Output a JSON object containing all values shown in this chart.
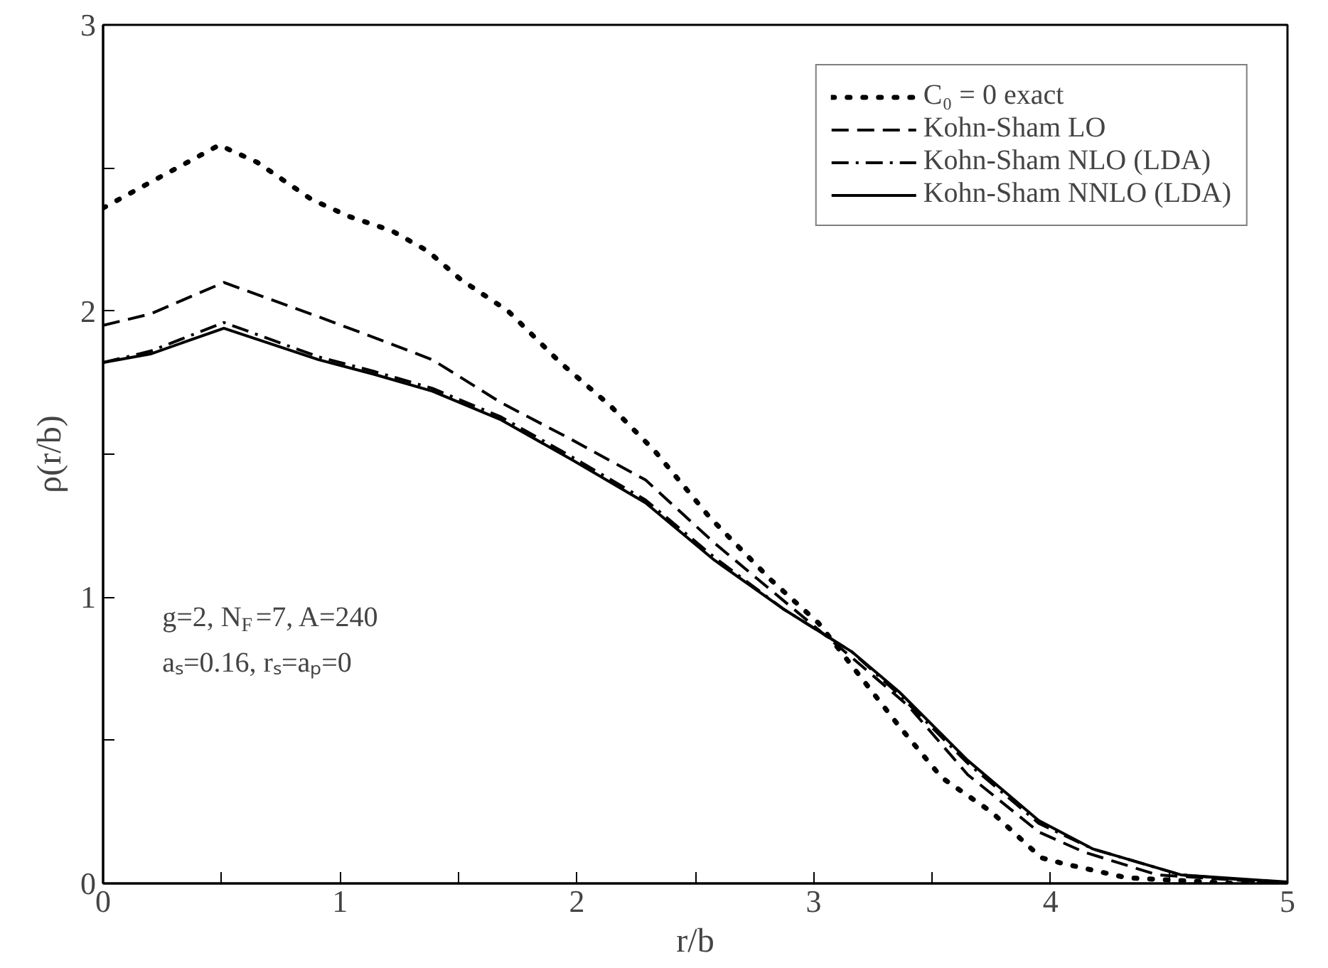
{
  "chart_data": {
    "type": "line",
    "xlabel": "r/b",
    "ylabel": "ρ(r/b)",
    "xlim": [
      0,
      5
    ],
    "ylim": [
      0,
      3
    ],
    "xticks": [
      0,
      {
        "value": 0.5,
        "label": null
      },
      1,
      {
        "value": 1.5,
        "label": null
      },
      2,
      {
        "value": 2.5,
        "label": null
      },
      3,
      {
        "value": 3.5,
        "label": null
      },
      4,
      {
        "value": 4.5,
        "label": null
      },
      5
    ],
    "yticks": [
      0,
      {
        "value": 0.5,
        "label": null
      },
      1,
      {
        "value": 1.5,
        "label": null
      },
      2,
      {
        "value": 2.5,
        "label": null
      },
      3
    ],
    "grid": false,
    "legend": "top right",
    "marker": "none",
    "annotations": [
      "g=2, N$_{F}$=7, A=240",
      "aₛ=0.16, rₛ=aₚ=0"
    ],
    "series": [
      {
        "name": "C₀ = 0 exact",
        "color": "#000000",
        "line_style": "dotted",
        "x": [
          0,
          0.2,
          0.49,
          0.65,
          0.88,
          1.04,
          1.22,
          1.37,
          1.51,
          1.71,
          1.93,
          2.14,
          2.33,
          2.56,
          2.82,
          3.02,
          3.19,
          3.36,
          3.54,
          3.75,
          3.96,
          4.05,
          4.32,
          4.77,
          5
        ],
        "values": [
          2.36,
          2.45,
          2.58,
          2.52,
          2.39,
          2.33,
          2.28,
          2.21,
          2.11,
          2.0,
          1.82,
          1.67,
          1.51,
          1.28,
          1.06,
          0.91,
          0.73,
          0.55,
          0.37,
          0.25,
          0.09,
          0.07,
          0.02,
          0.0,
          0.0
        ]
      },
      {
        "name": "Kohn-Sham LO",
        "color": "#000000",
        "line_style": "dashed",
        "x": [
          0,
          0.2,
          0.51,
          0.91,
          1.2,
          1.39,
          1.68,
          1.98,
          2.29,
          2.58,
          2.87,
          3.16,
          3.4,
          3.65,
          3.95,
          4.14,
          4.45,
          5
        ],
        "values": [
          1.95,
          1.99,
          2.1,
          1.98,
          1.89,
          1.83,
          1.68,
          1.55,
          1.41,
          1.19,
          0.99,
          0.79,
          0.62,
          0.38,
          0.18,
          0.11,
          0.03,
          0.0
        ]
      },
      {
        "name": "Kohn-Sham NLO (LDA)",
        "color": "#000000",
        "line_style": "dashdot",
        "x": [
          0,
          0.2,
          0.51,
          0.91,
          1.14,
          1.39,
          1.68,
          1.98,
          2.29,
          2.58,
          2.87,
          3.16,
          3.36,
          3.65,
          3.95,
          4.18,
          4.55,
          5
        ],
        "values": [
          1.82,
          1.86,
          1.96,
          1.84,
          1.79,
          1.73,
          1.63,
          1.49,
          1.34,
          1.14,
          0.96,
          0.81,
          0.66,
          0.42,
          0.21,
          0.12,
          0.03,
          0.0
        ]
      },
      {
        "name": "Kohn-Sham NNLO (LDA)",
        "color": "#000000",
        "line_style": "solid",
        "x": [
          0,
          0.2,
          0.51,
          0.91,
          1.14,
          1.39,
          1.68,
          1.98,
          2.29,
          2.58,
          2.87,
          3.16,
          3.36,
          3.65,
          3.95,
          4.18,
          4.55,
          5
        ],
        "values": [
          1.82,
          1.85,
          1.94,
          1.83,
          1.78,
          1.72,
          1.62,
          1.48,
          1.33,
          1.13,
          0.96,
          0.81,
          0.67,
          0.43,
          0.22,
          0.12,
          0.03,
          0.005
        ]
      }
    ]
  }
}
